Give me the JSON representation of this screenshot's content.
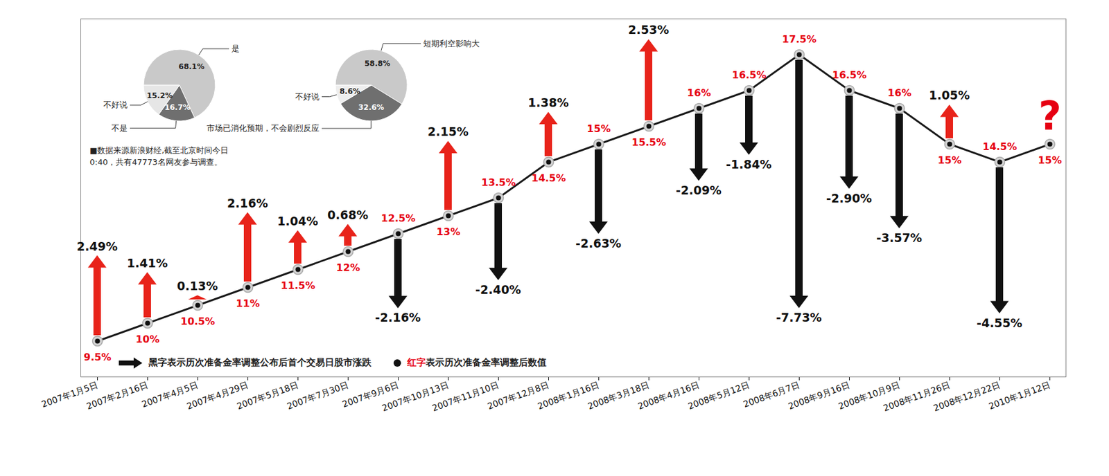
{
  "chart_data": [
    {
      "type": "line",
      "x": [
        "2007年1月5日",
        "2007年2月16日",
        "2007年4月5日",
        "2007年4月29日",
        "2007年5月18日",
        "2007年7月30日",
        "2007年9月6日",
        "2007年10月13日",
        "2007年11月10日",
        "2007年12月8日",
        "2008年1月16日",
        "2008年3月18日",
        "2008年4月16日",
        "2008年5月12日",
        "2008年6月7日",
        "2008年9月16日",
        "2008年10月9日",
        "2008年11月26日",
        "2008年12月22日",
        "2010年1月12日"
      ],
      "series": [
        {
          "name": "黑字表示历次准备金率调整公布后首个交易日股市涨跌",
          "type": "arrow",
          "axis": "y2",
          "color": "#111111",
          "colors": [
            "#e8231a",
            "#e8231a",
            "#e8231a",
            "#e8231a",
            "#e8231a",
            "#e8231a",
            "#111111",
            "#e8231a",
            "#111111",
            "#e8231a",
            "#111111",
            "#e8231a",
            "#111111",
            "#111111",
            "#111111",
            "#111111",
            "#111111",
            "#e8231a",
            "#111111",
            null
          ],
          "values": [
            2.49,
            1.41,
            0.13,
            2.16,
            1.04,
            0.68,
            -2.16,
            2.15,
            -2.4,
            1.38,
            -2.63,
            2.53,
            -2.09,
            -1.84,
            -7.73,
            -2.9,
            -3.57,
            1.05,
            -4.55,
            null
          ],
          "value_labels": [
            "2.49%",
            "1.41%",
            "0.13%",
            "2.16%",
            "1.04%",
            "0.68%",
            "-2.16%",
            "2.15%",
            "-2.40%",
            "1.38%",
            "-2.63%",
            "2.53%",
            "-2.09%",
            "-1.84%",
            "-7.73%",
            "-2.90%",
            "-3.57%",
            "1.05%",
            "-4.55%",
            null
          ]
        },
        {
          "name": "红字表示历次准备金率调整后数值",
          "type": "line",
          "marker": "circle",
          "color": "#e60012",
          "values": [
            9.5,
            10,
            10.5,
            11,
            11.5,
            12,
            12.5,
            13,
            13.5,
            14.5,
            15,
            15.5,
            16,
            16.5,
            17.5,
            16.5,
            16,
            15,
            14.5,
            15
          ],
          "value_labels": [
            "9.5%",
            "10%",
            "10.5%",
            "11%",
            "11.5%",
            "12%",
            "12.5%",
            "13%",
            "13.5%",
            "14.5%",
            "15%",
            "15.5%",
            "16%",
            "16.5%",
            "17.5%",
            "16.5%",
            "16%",
            "15%",
            "14.5%",
            "15%"
          ]
        }
      ],
      "ylim": [
        8.5,
        18.5
      ],
      "yticks": [],
      "y2lim": [
        -8,
        3
      ],
      "tick_labels": "x",
      "data_labels": true,
      "legend": "bottom left",
      "annotations": [
        {
          "text": "?",
          "x": "2010年1月12日",
          "color": "#e60012"
        }
      ]
    },
    {
      "type": "pie",
      "categories": [
        "是",
        "不是",
        "不好说"
      ],
      "values": [
        68.1,
        16.7,
        15.2
      ],
      "value_labels": [
        "68.1%",
        "16.7%",
        "15.2%"
      ],
      "colors": [
        "#c9c9c9",
        "#6f6f6f",
        "#e6e6e6"
      ],
      "data_labels": true
    },
    {
      "type": "pie",
      "categories": [
        "短期利空影响大",
        "市场已消化预期，不会剧烈反应",
        "不好说"
      ],
      "values": [
        58.8,
        32.6,
        8.6
      ],
      "value_labels": [
        "58.8%",
        "32.6%",
        "8.6%"
      ],
      "colors": [
        "#c9c9c9",
        "#6f6f6f",
        "#eeeeee"
      ],
      "data_labels": true
    }
  ],
  "note": "■数据来源新浪财经,截至北京时间今日0:40，共有47773名网友参与调查。"
}
